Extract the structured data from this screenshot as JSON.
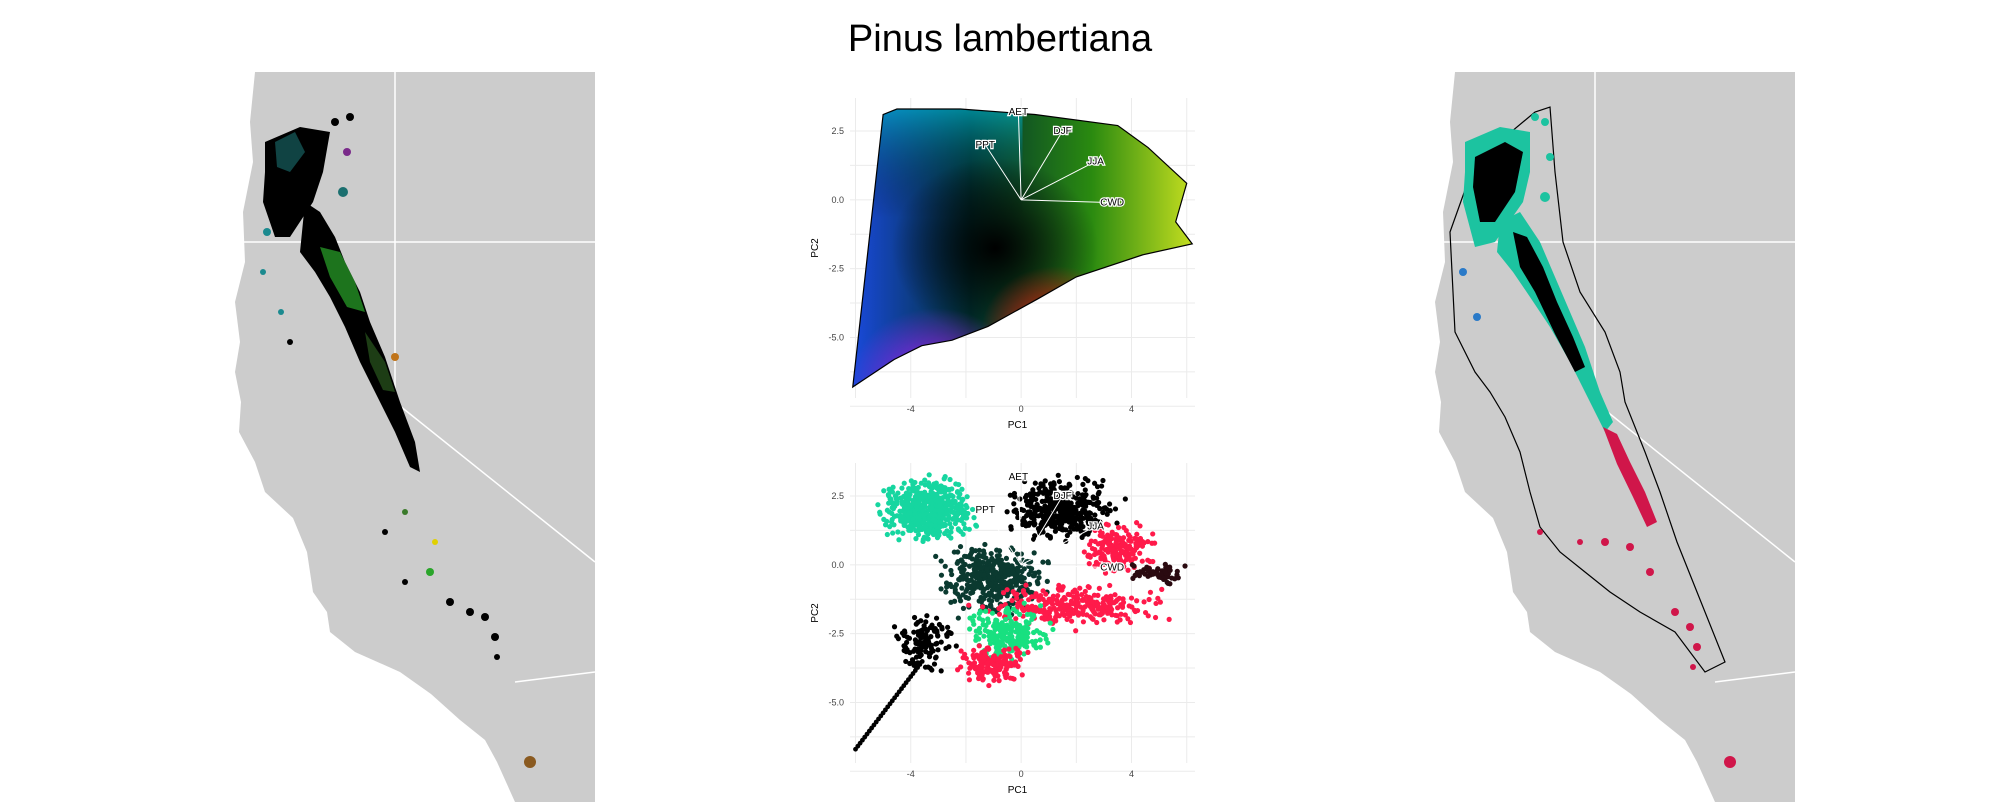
{
  "figure": {
    "title": "Pinus lambertiana"
  },
  "colors": {
    "land": "#cccccc",
    "borders": "#ffffff",
    "species_dark": "#000000",
    "arrow": "#ffffff",
    "hull": "#000000"
  },
  "chart_data": [
    {
      "type": "map",
      "panel": "left",
      "description_colors": [
        "#000000",
        "#1b8a8f",
        "#2aa52a",
        "#7a2a8a"
      ]
    },
    {
      "type": "scatter",
      "panel": "pca-top",
      "xlabel": "PC1",
      "ylabel": "PC2",
      "xlim": [
        -6.2,
        6.3
      ],
      "ylim": [
        -7.2,
        3.7
      ],
      "xticks": [
        -4,
        0,
        4
      ],
      "yticks": [
        2.5,
        0.0,
        -2.5,
        -5.0
      ],
      "xtick_labels": [
        "-4",
        "0",
        "4"
      ],
      "ytick_labels": [
        "2.5",
        "0.0",
        "-2.5",
        "-5.0"
      ],
      "grid": true,
      "vectors": [
        {
          "name": "AET",
          "x": -0.1,
          "y": 3.2
        },
        {
          "name": "DJF",
          "x": 1.5,
          "y": 2.5
        },
        {
          "name": "JJA",
          "x": 2.7,
          "y": 1.4
        },
        {
          "name": "CWD",
          "x": 3.3,
          "y": -0.1
        },
        {
          "name": "PPT",
          "x": -1.3,
          "y": 2.0
        }
      ],
      "hull": [
        [
          -6.1,
          -6.8
        ],
        [
          -5.0,
          3.1
        ],
        [
          -4.5,
          3.3
        ],
        [
          -2.2,
          3.3
        ],
        [
          0.5,
          3.1
        ],
        [
          3.5,
          2.7
        ],
        [
          4.6,
          1.9
        ],
        [
          6.0,
          0.6
        ],
        [
          5.6,
          -0.8
        ],
        [
          6.2,
          -1.6
        ],
        [
          4.4,
          -2.0
        ],
        [
          2.0,
          -2.8
        ],
        [
          0.6,
          -3.6
        ],
        [
          -1.2,
          -4.6
        ],
        [
          -2.5,
          -5.1
        ],
        [
          -3.6,
          -5.3
        ],
        [
          -4.6,
          -5.8
        ],
        [
          -6.1,
          -6.8
        ]
      ]
    },
    {
      "type": "scatter",
      "panel": "pca-bottom",
      "xlabel": "PC1",
      "ylabel": "PC2",
      "xlim": [
        -6.2,
        6.3
      ],
      "ylim": [
        -7.2,
        3.7
      ],
      "xticks": [
        -4,
        0,
        4
      ],
      "yticks": [
        2.5,
        0.0,
        -2.5,
        -5.0
      ],
      "xtick_labels": [
        "-4",
        "0",
        "4"
      ],
      "ytick_labels": [
        "2.5",
        "0.0",
        "-2.5",
        "-5.0"
      ],
      "grid": true,
      "vectors": [
        {
          "name": "AET",
          "x": -0.1,
          "y": 3.2
        },
        {
          "name": "DJF",
          "x": 1.5,
          "y": 2.5
        },
        {
          "name": "JJA",
          "x": 2.7,
          "y": 1.4
        },
        {
          "name": "CWD",
          "x": 3.3,
          "y": -0.1
        },
        {
          "name": "PPT",
          "x": -1.3,
          "y": 2.0
        }
      ],
      "cluster_colors": [
        "#16d6a0",
        "#000000",
        "#ff1a4a",
        "#18e080"
      ]
    },
    {
      "type": "map",
      "panel": "right",
      "description_colors": [
        "#000000",
        "#1cc3a0",
        "#d0164a",
        "#2a7ac8"
      ]
    }
  ]
}
